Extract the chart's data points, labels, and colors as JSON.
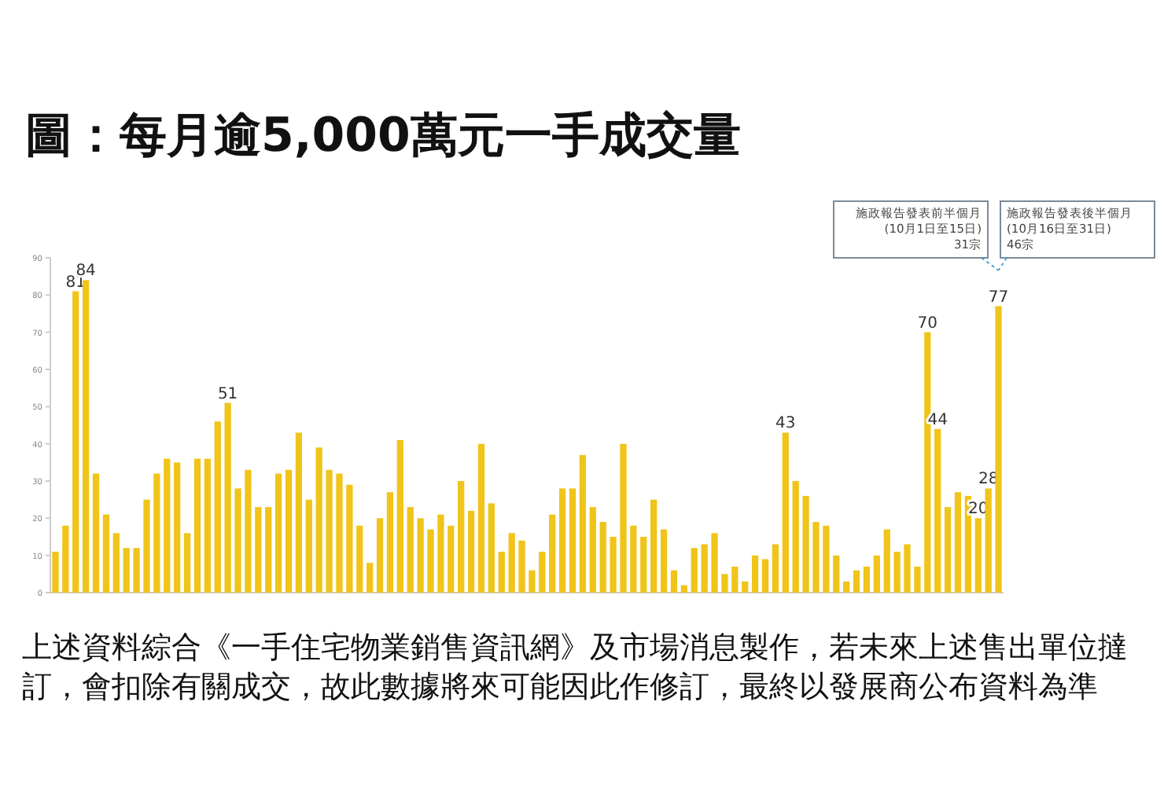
{
  "chart_data": {
    "type": "bar",
    "title": "圖：每月逾5,000萬元一手成交量",
    "categories": [
      null,
      null,
      null,
      null,
      null,
      null,
      null,
      null,
      null,
      null,
      null,
      null,
      null,
      null,
      null,
      null,
      null,
      null,
      null,
      null,
      null,
      null,
      null,
      null,
      null,
      null,
      null,
      null,
      null,
      null,
      null,
      null,
      null,
      null,
      null,
      null,
      null,
      null,
      null,
      null,
      null,
      null,
      null,
      null,
      null,
      null,
      null,
      null,
      null,
      null,
      null,
      null,
      null,
      null,
      null,
      null,
      null,
      null,
      null,
      null,
      null,
      null,
      null,
      null,
      null,
      null,
      null,
      null,
      null,
      null,
      null,
      null,
      null,
      null,
      null,
      null,
      null,
      null,
      null,
      null,
      null,
      null,
      null,
      null,
      null,
      null,
      null,
      null,
      null,
      null,
      null,
      null,
      null,
      null
    ],
    "values": [
      11,
      18,
      81,
      84,
      32,
      21,
      16,
      12,
      12,
      25,
      32,
      36,
      35,
      16,
      36,
      36,
      46,
      51,
      28,
      33,
      23,
      23,
      32,
      33,
      43,
      25,
      39,
      33,
      32,
      29,
      18,
      8,
      20,
      27,
      41,
      23,
      20,
      17,
      21,
      18,
      30,
      22,
      40,
      24,
      11,
      16,
      14,
      6,
      11,
      21,
      28,
      28,
      37,
      23,
      19,
      15,
      40,
      18,
      15,
      25,
      17,
      6,
      2,
      12,
      13,
      16,
      5,
      7,
      3,
      10,
      9,
      13,
      43,
      30,
      26,
      19,
      18,
      10,
      3,
      6,
      7,
      10,
      17,
      11,
      13,
      7,
      70,
      44,
      23,
      27,
      26,
      20,
      28,
      77
    ],
    "value_labels": [
      null,
      null,
      "81",
      "84",
      null,
      null,
      null,
      null,
      null,
      null,
      null,
      null,
      null,
      null,
      null,
      null,
      null,
      "51",
      null,
      null,
      null,
      null,
      null,
      null,
      null,
      null,
      null,
      null,
      null,
      null,
      null,
      null,
      null,
      null,
      null,
      null,
      null,
      null,
      null,
      null,
      null,
      null,
      null,
      null,
      null,
      null,
      null,
      null,
      null,
      null,
      null,
      null,
      null,
      null,
      null,
      null,
      null,
      null,
      null,
      null,
      null,
      null,
      null,
      null,
      null,
      null,
      null,
      null,
      null,
      null,
      null,
      null,
      "43",
      null,
      null,
      null,
      null,
      null,
      null,
      null,
      null,
      null,
      null,
      null,
      null,
      null,
      "70",
      "44",
      null,
      null,
      null,
      "20",
      "28",
      "77"
    ],
    "color": "#f0c419",
    "ylim": [
      0,
      90
    ],
    "yticks": [
      0,
      10,
      20,
      30,
      40,
      50,
      60,
      70,
      80,
      90
    ],
    "tick_labels": "y",
    "annotations": [
      "施政報告發表前半個月\n(10月1日至15日)\n31宗",
      "施政報告發表後半個月\n(10月16日至31日)\n46宗",
      "上述資料綜合《一手住宅物業銷售資訊網》及市場消息製作，若未來上述售出單位撻訂，會扣除有關成交，故此數據將來可能因此作修訂，最終以發展商公布資料為準"
    ]
  }
}
